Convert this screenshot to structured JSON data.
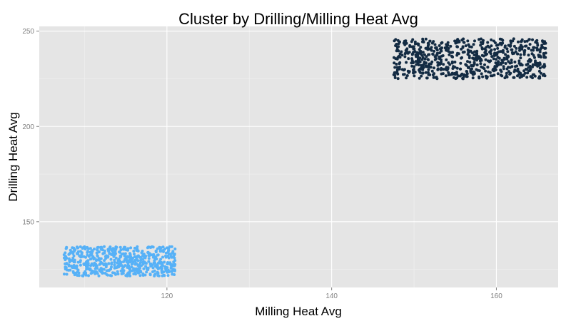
{
  "chart_data": {
    "type": "scatter",
    "title": "Cluster by Drilling/Milling Heat Avg",
    "xlabel": "Milling Heat Avg",
    "ylabel": "Drilling Heat Avg",
    "xlim": [
      104.5,
      167.5
    ],
    "ylim": [
      115.5,
      252.5
    ],
    "x_ticks": [
      120,
      140,
      160
    ],
    "y_ticks": [
      150,
      200,
      250
    ],
    "grid": true,
    "panel_background": "#e5e5e5",
    "grid_color": "#ffffff",
    "legend": "none",
    "series": [
      {
        "color": "#56b1f7",
        "x_range": [
          107.5,
          121
        ],
        "y_range": [
          121.5,
          137
        ],
        "point_count": 600
      },
      {
        "color": "#132b43",
        "x_range": [
          147.5,
          166
        ],
        "y_range": [
          225,
          246
        ],
        "point_count": 700
      }
    ]
  }
}
